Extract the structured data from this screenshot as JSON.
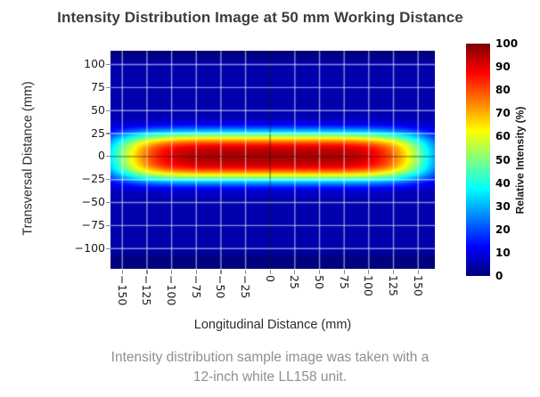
{
  "title": "Intensity Distribution Image at 50 mm Working Distance",
  "caption": {
    "line1": "Intensity distribution sample image was taken with a",
    "line2": "12-inch white LL158 unit."
  },
  "chart_data": {
    "type": "heatmap",
    "title": "Intensity Distribution Image at 50 mm Working Distance",
    "xlabel": "Longitudinal Distance (mm)",
    "ylabel": "Transversal Distance (mm)",
    "colorbar_label": "Relative Intensity (%)",
    "x_ticks": [
      -150,
      -125,
      -100,
      -75,
      -50,
      -25,
      0,
      25,
      50,
      75,
      100,
      125,
      150
    ],
    "y_ticks": [
      100,
      75,
      50,
      25,
      0,
      -25,
      -50,
      -75,
      -100
    ],
    "colorbar_ticks": [
      100,
      90,
      80,
      70,
      60,
      50,
      40,
      30,
      20,
      10,
      0
    ],
    "xlim": [
      -162,
      167
    ],
    "ylim": [
      -122,
      115
    ],
    "colormap": "jet",
    "colorbar_range": [
      0,
      100
    ],
    "grid": {
      "on": true,
      "spacing_mm": 25,
      "color": "#ffffff",
      "zero_line_color": "#333333"
    },
    "x_tick_rotation_deg": 90,
    "distribution": {
      "model": "flat-top super-Gaussian beam",
      "center_mm": [
        0,
        0
      ],
      "peak_percent": 95.5,
      "background_percent": 4.5,
      "half_width_50pct_mm": 150,
      "x_exponent": 6,
      "half_height_50pct_mm": 23,
      "y_exponent": 3,
      "background_fade_half_mm": 107,
      "background_fade_exponent": 40,
      "description": "Horizontally elongated flat-topped spot centered at (0,0); red core (>80%) spans about x = -130..130 mm, y = -17..17 mm; 50% contour at x = +/-150 mm, y = +/-23 mm; background ~4-5% blue fading to 0 at top/bottom edges"
    }
  },
  "colors": {
    "title_text": "#3d3d3d",
    "axis_title_text": "#2b2b2b",
    "tick_text": "#1b1b1b",
    "caption_text": "#8f8f8f",
    "background": "#ffffff",
    "colormap_low": "#000080",
    "colormap_high": "#800000"
  }
}
